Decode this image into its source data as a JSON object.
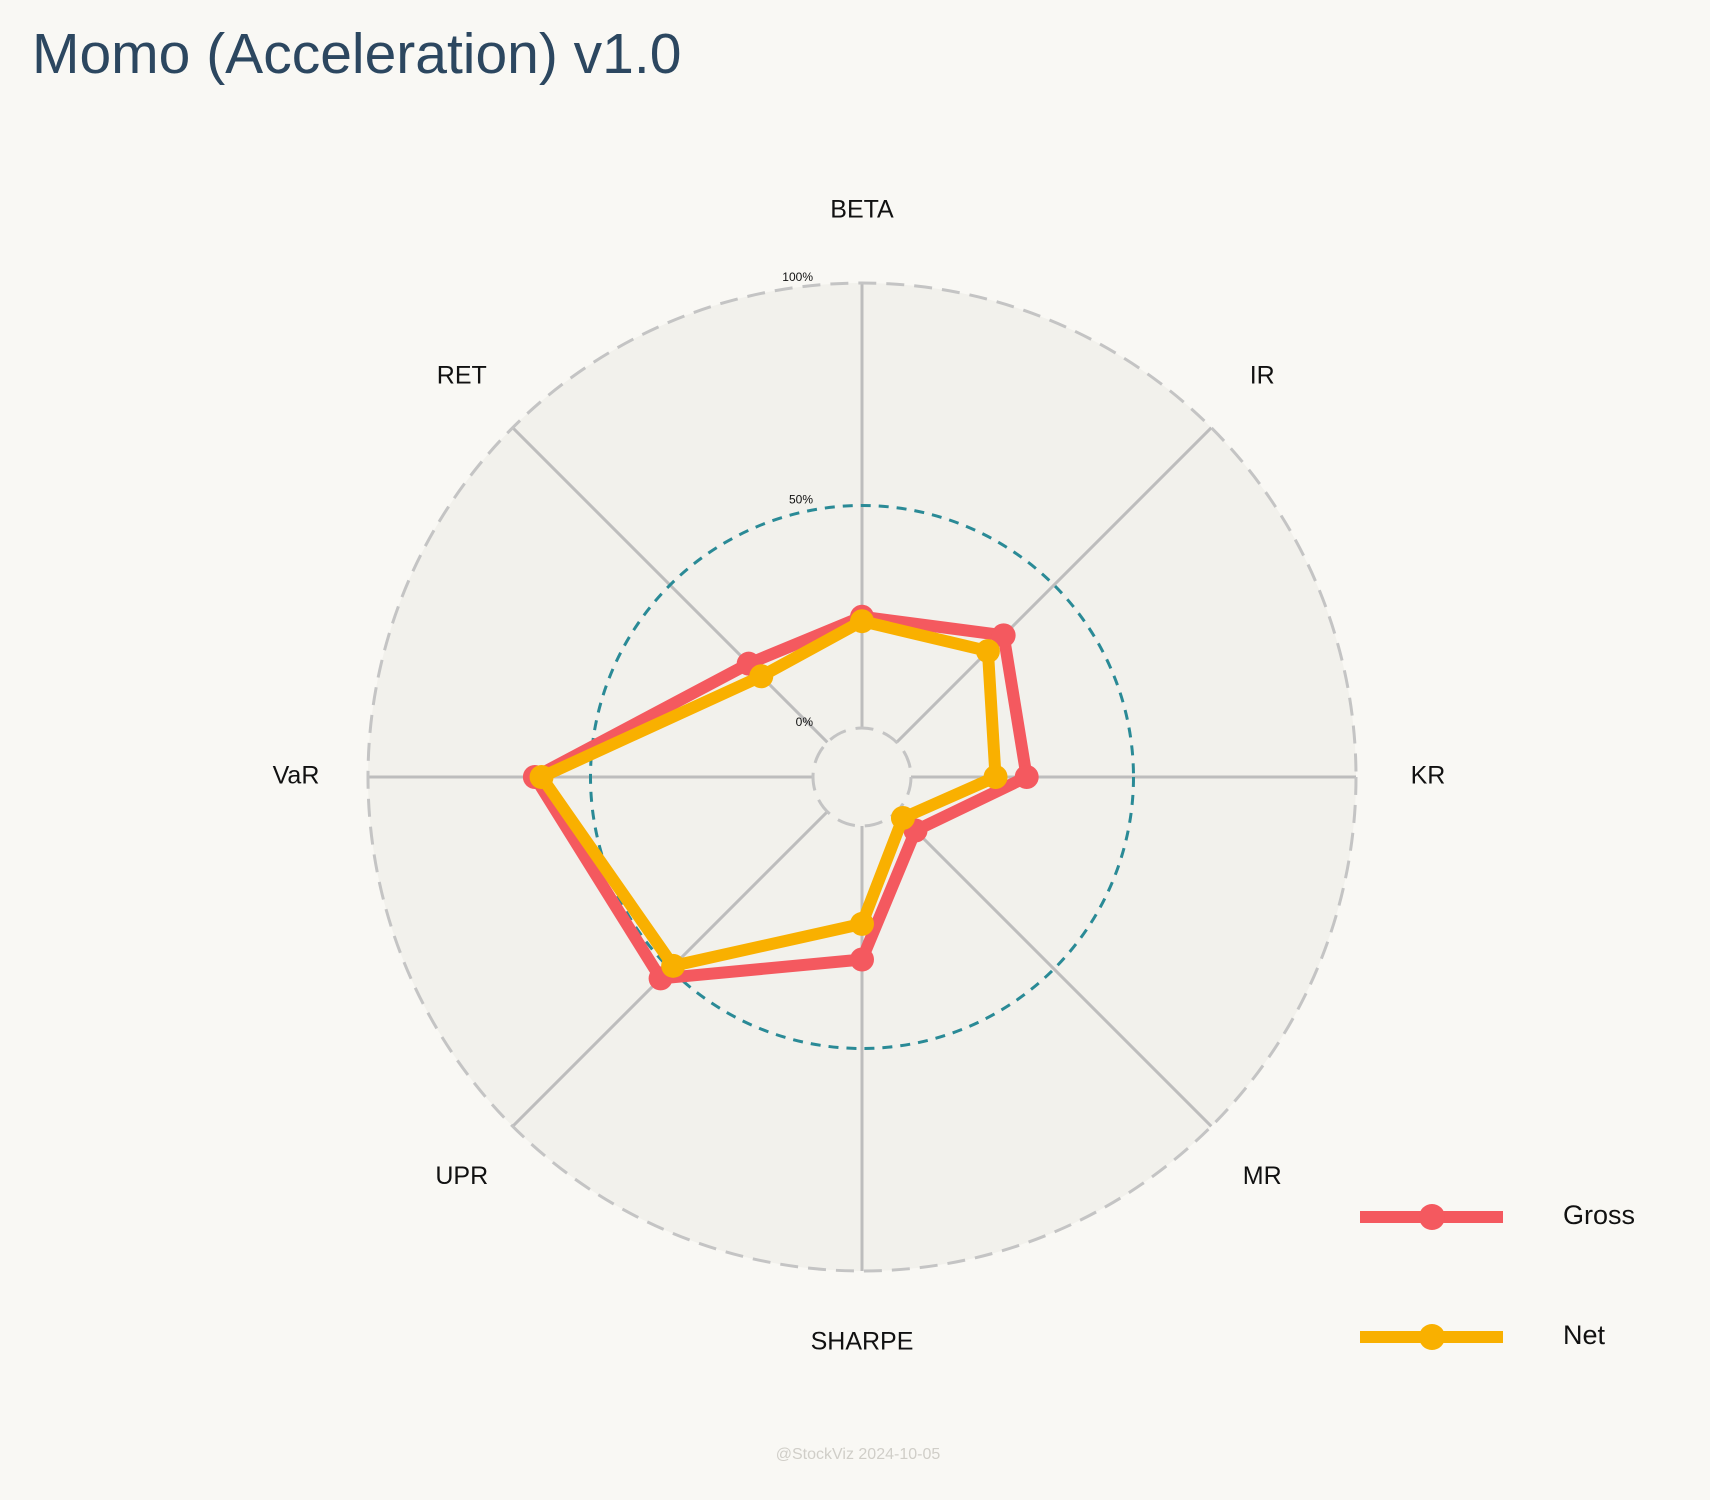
{
  "chart_data": {
    "type": "radar",
    "title": "Momo (Acceleration) v1.0",
    "categories": [
      "BETA",
      "IR",
      "KR",
      "MR",
      "SHARPE",
      "UPR",
      "VaR",
      "RET"
    ],
    "series": [
      {
        "name": "Gross",
        "color": "#f4595f",
        "values": [
          25,
          34,
          26,
          6,
          30,
          53,
          62.5,
          25
        ]
      },
      {
        "name": "Net",
        "color": "#f9b000",
        "values": [
          24,
          29,
          19,
          2,
          22,
          49,
          61,
          21
        ]
      }
    ],
    "rlim": [
      0,
      100
    ],
    "rticks": [
      {
        "value": 0,
        "label": "0%"
      },
      {
        "value": 50,
        "label": "50%"
      },
      {
        "value": 100,
        "label": "100%"
      }
    ],
    "legend": "lower right",
    "footer": "@StockViz 2024-10-05"
  }
}
